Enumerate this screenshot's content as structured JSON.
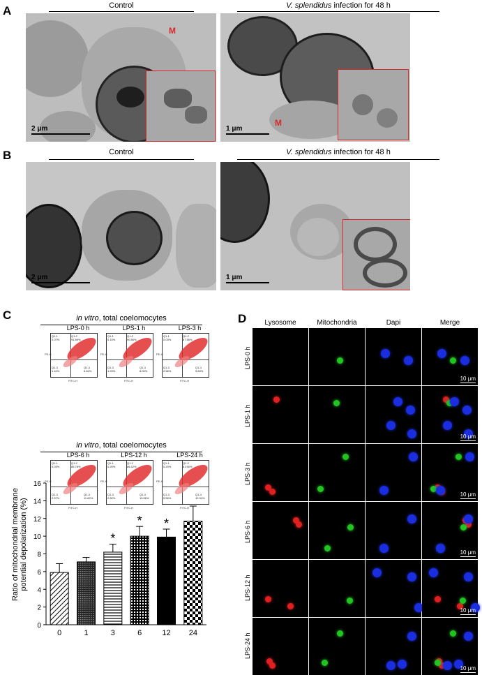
{
  "panelA": {
    "letter": "A",
    "left_title": "Control",
    "right_title_italic": "V. splendidus",
    "right_title_rest": " infection for 48 h",
    "left_scale": "2 μm",
    "right_scale": "1 μm",
    "m_label": "M"
  },
  "panelB": {
    "letter": "B",
    "left_title": "Control",
    "right_title_italic": "V. splendidus",
    "right_title_rest": " infection for 48 h",
    "left_scale": "2 μm",
    "right_scale": "1 μm"
  },
  "panelC": {
    "letter": "C",
    "header_italic": "in vitro",
    "header_rest": ", total coelomocytes",
    "x_axis_label": "FITC-H",
    "y_axis_label": "PE-H",
    "flow_plots": [
      {
        "title": "LPS-0 h",
        "q1": "Q1-1\n0.07%",
        "q2": "Q1-2\n91.89%",
        "q3": "Q1-3\n1.44%",
        "q4": "Q1-4\n6.64%"
      },
      {
        "title": "LPS-1 h",
        "q1": "Q1-1\n0.10%",
        "q2": "Q1-2\n90.56%",
        "q3": "Q1-3\n1.23%",
        "q4": "Q1-4\n8.00%"
      },
      {
        "title": "LPS-3 h",
        "q1": "Q1-1\n0.03%",
        "q2": "Q1-2\n87.56%",
        "q3": "Q1-3\n2.56%",
        "q4": "Q1-4\n9.63%"
      },
      {
        "title": "LPS-6 h",
        "q1": "Q1-1\n0.03%",
        "q2": "Q1-2\n85.78%",
        "q3": "Q1-3\n2.57%",
        "q4": "Q1-4\n11.62%"
      },
      {
        "title": "LPS-12 h",
        "q1": "Q1-1\n0.20%",
        "q2": "Q1-2\n86.42%",
        "q3": "Q1-3\n2.82%",
        "q4": "Q1-4\n10.56%"
      },
      {
        "title": "LPS-24 h",
        "q1": "Q1-1\n0.20%",
        "q2": "Q1-2\n81.90%",
        "q3": "Q1-3\n5.56%",
        "q4": "Q1-4\n12.34%"
      }
    ]
  },
  "panelD": {
    "letter": "D",
    "columns": [
      "Lysosome",
      "Mitochondria",
      "Dapi",
      "Merge"
    ],
    "rows": [
      "LPS-0 h",
      "LPS-1 h",
      "LPS-3 h",
      "LPS-6 h",
      "LPS-12 h",
      "LPS-24 h"
    ],
    "scale": "10 μm"
  },
  "chart_data": {
    "type": "bar",
    "categories": [
      "0",
      "1",
      "3",
      "6",
      "12",
      "24"
    ],
    "values": [
      5.9,
      7.1,
      8.2,
      10.0,
      9.9,
      11.7
    ],
    "errors": [
      1.0,
      0.5,
      0.9,
      1.1,
      0.9,
      1.7
    ],
    "significant": [
      false,
      false,
      true,
      true,
      true,
      false
    ],
    "significance_mark": "*",
    "ylabel_line1": "Ratio of mitochondrial membrane",
    "ylabel_line2": "potential depolarization (%)",
    "xlabel": "",
    "ylim": [
      0,
      16
    ],
    "yticks": [
      "0",
      "2",
      "4",
      "6",
      "8",
      "10",
      "12",
      "14",
      "16"
    ]
  }
}
